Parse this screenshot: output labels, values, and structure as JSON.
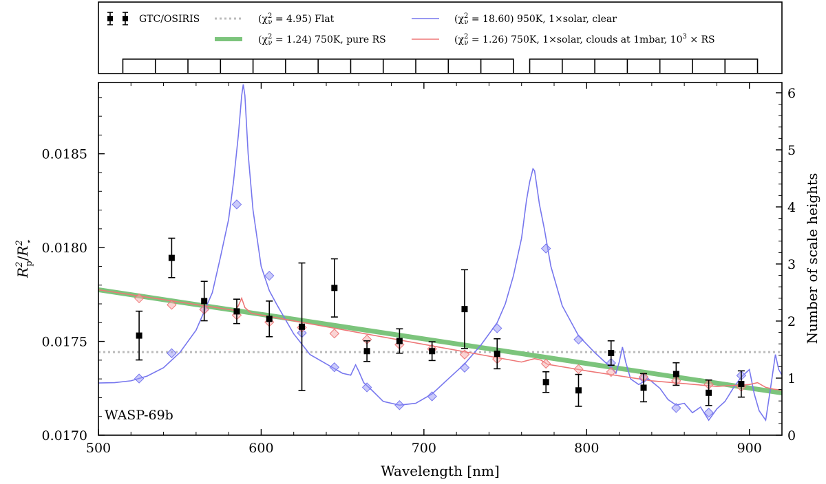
{
  "chart_data": {
    "type": "scatter",
    "planet_label": "WASP-69b",
    "xlabel": "Wavelength [nm]",
    "ylabel": "R²p/R²⋆",
    "ylabel_parts": {
      "r": "R",
      "p": "p",
      "sq": "2",
      "star": "⋆"
    },
    "y2label": "Number of scale heights",
    "xlim": [
      500,
      920
    ],
    "ylim": [
      0.017,
      0.01888
    ],
    "y2lim": [
      0,
      6.18
    ],
    "x_ticks": [
      500,
      600,
      700,
      800,
      900
    ],
    "x_tick_labels": [
      "500",
      "600",
      "700",
      "800",
      "900"
    ],
    "y_ticks": [
      0.017,
      0.0175,
      0.018,
      0.0185
    ],
    "y_tick_labels": [
      "0.0170",
      "0.0175",
      "0.0180",
      "0.0185"
    ],
    "y2_ticks": [
      0,
      1,
      2,
      3,
      4,
      5,
      6
    ],
    "y2_tick_labels": [
      "0",
      "1",
      "2",
      "3",
      "4",
      "5",
      "6"
    ],
    "legend": {
      "placement": "top panel",
      "entries": [
        {
          "label": "GTC/OSIRIS",
          "style": "errorbar",
          "color": "#000000"
        },
        {
          "label": "(χ²ν = 4.95) Flat",
          "style": "dotted",
          "color": "#bbbbbb"
        },
        {
          "label": "(χ²ν = 18.60) 950K, 1×solar, clear",
          "style": "line",
          "color": "#7777ee"
        },
        {
          "label": "(χ²ν = 1.24) 750K, pure RS",
          "style": "thick",
          "color": "#7cc47c"
        },
        {
          "label": "(χ²ν = 1.26) 750K, 1×solar, clouds at 1mbar, 10³ × RS",
          "style": "line",
          "color": "#ee7777"
        }
      ]
    },
    "bins": {
      "group1": [
        515,
        535,
        555,
        575,
        595,
        615,
        635,
        655,
        675,
        695,
        715,
        735,
        755
      ],
      "group2": [
        765,
        785,
        805,
        825,
        845,
        865,
        885,
        905
      ]
    },
    "series": [
      {
        "name": "GTC/OSIRIS",
        "kind": "errorbar",
        "color": "#000000",
        "x": [
          525,
          545,
          565,
          585,
          605,
          625,
          645,
          665,
          685,
          705,
          725,
          745,
          775,
          795,
          815,
          835,
          855,
          875,
          895
        ],
        "y": [
          0.017531,
          0.017945,
          0.017715,
          0.01766,
          0.01762,
          0.017578,
          0.017785,
          0.017448,
          0.017502,
          0.017448,
          0.017672,
          0.017434,
          0.017283,
          0.017239,
          0.017438,
          0.017253,
          0.017326,
          0.017226,
          0.017273
        ],
        "yerr": [
          0.00013,
          0.000105,
          0.000105,
          6.5e-05,
          9.5e-05,
          0.00034,
          0.000155,
          5.5e-05,
          6.5e-05,
          5e-05,
          0.00021,
          8e-05,
          5.5e-05,
          8.5e-05,
          6.5e-05,
          7.5e-05,
          6e-05,
          6.8e-05,
          7e-05
        ]
      },
      {
        "name": "Flat",
        "kind": "line",
        "color": "#bbbbbb",
        "x": [
          500,
          920
        ],
        "y": [
          0.017443,
          0.017443
        ]
      },
      {
        "name": "950K clear",
        "kind": "line",
        "color": "#7777ee",
        "x": [
          500,
          510,
          520,
          530,
          540,
          550,
          560,
          570,
          575,
          580,
          583,
          586,
          588,
          589,
          590,
          592,
          595,
          600,
          605,
          610,
          620,
          630,
          640,
          650,
          655,
          658,
          660,
          663,
          668,
          675,
          685,
          695,
          705,
          715,
          725,
          735,
          745,
          750,
          755,
          760,
          763,
          765,
          767,
          768,
          769,
          771,
          774,
          778,
          785,
          795,
          805,
          815,
          818,
          820,
          822,
          824,
          827,
          832,
          838,
          845,
          850,
          855,
          860,
          865,
          870,
          875,
          880,
          885,
          890,
          895,
          900,
          903,
          906,
          910,
          913,
          916,
          918,
          920
        ],
        "y": [
          0.017278,
          0.01728,
          0.01729,
          0.017315,
          0.01736,
          0.01744,
          0.01756,
          0.01776,
          0.01795,
          0.01815,
          0.01835,
          0.0186,
          0.01881,
          0.01887,
          0.01881,
          0.0185,
          0.0182,
          0.0179,
          0.01777,
          0.01769,
          0.01754,
          0.01743,
          0.01738,
          0.01733,
          0.01732,
          0.017375,
          0.01734,
          0.01728,
          0.01724,
          0.01718,
          0.01716,
          0.01717,
          0.01722,
          0.0173,
          0.01738,
          0.01748,
          0.0176,
          0.0177,
          0.01785,
          0.01805,
          0.01825,
          0.01835,
          0.01842,
          0.01841,
          0.01835,
          0.01823,
          0.0181,
          0.0179,
          0.01769,
          0.01753,
          0.01744,
          0.01736,
          0.01733,
          0.01739,
          0.01747,
          0.01739,
          0.0173,
          0.01727,
          0.0173,
          0.01725,
          0.01719,
          0.01716,
          0.01717,
          0.01712,
          0.01715,
          0.01708,
          0.01714,
          0.01718,
          0.01725,
          0.01731,
          0.01735,
          0.01722,
          0.01713,
          0.01708,
          0.01725,
          0.01743,
          0.01735,
          0.01732
        ]
      },
      {
        "name": "750K pure RS",
        "kind": "line",
        "color": "#7cc47c",
        "x": [
          500,
          920
        ],
        "y": [
          0.017775,
          0.017225
        ]
      },
      {
        "name": "750K clouds",
        "kind": "line",
        "color": "#ee7777",
        "x": [
          500,
          584,
          586,
          588,
          590,
          594,
          760,
          768,
          772,
          776,
          800,
          840,
          880,
          900,
          905,
          910,
          915,
          920
        ],
        "y": [
          0.017775,
          0.017665,
          0.01769,
          0.01773,
          0.01768,
          0.01765,
          0.01739,
          0.017408,
          0.0174,
          0.017378,
          0.017343,
          0.01729,
          0.01726,
          0.01727,
          0.01728,
          0.017255,
          0.017245,
          0.01724
        ]
      }
    ],
    "model_points": [
      {
        "name": "950K clear binned",
        "color": "#7777ee",
        "x": [
          525,
          545,
          565,
          585,
          605,
          625,
          645,
          665,
          685,
          705,
          725,
          745,
          775,
          795,
          815,
          835,
          855,
          875,
          895
        ],
        "y": [
          0.017302,
          0.017437,
          0.01767,
          0.01823,
          0.01785,
          0.017545,
          0.017362,
          0.017255,
          0.01716,
          0.017207,
          0.01736,
          0.01757,
          0.017995,
          0.01751,
          0.017385,
          0.017303,
          0.017145,
          0.01712,
          0.017318
        ]
      },
      {
        "name": "750K clouds binned",
        "color": "#ee7777",
        "x": [
          525,
          545,
          565,
          585,
          605,
          625,
          645,
          665,
          685,
          705,
          725,
          745,
          775,
          795,
          815,
          835,
          855,
          875,
          895
        ],
        "y": [
          0.01773,
          0.017695,
          0.01767,
          0.01764,
          0.017603,
          0.017574,
          0.017542,
          0.01751,
          0.017483,
          0.01746,
          0.01743,
          0.017406,
          0.017381,
          0.017352,
          0.017337,
          0.01731,
          0.01729,
          0.01727,
          0.017258
        ]
      }
    ]
  }
}
